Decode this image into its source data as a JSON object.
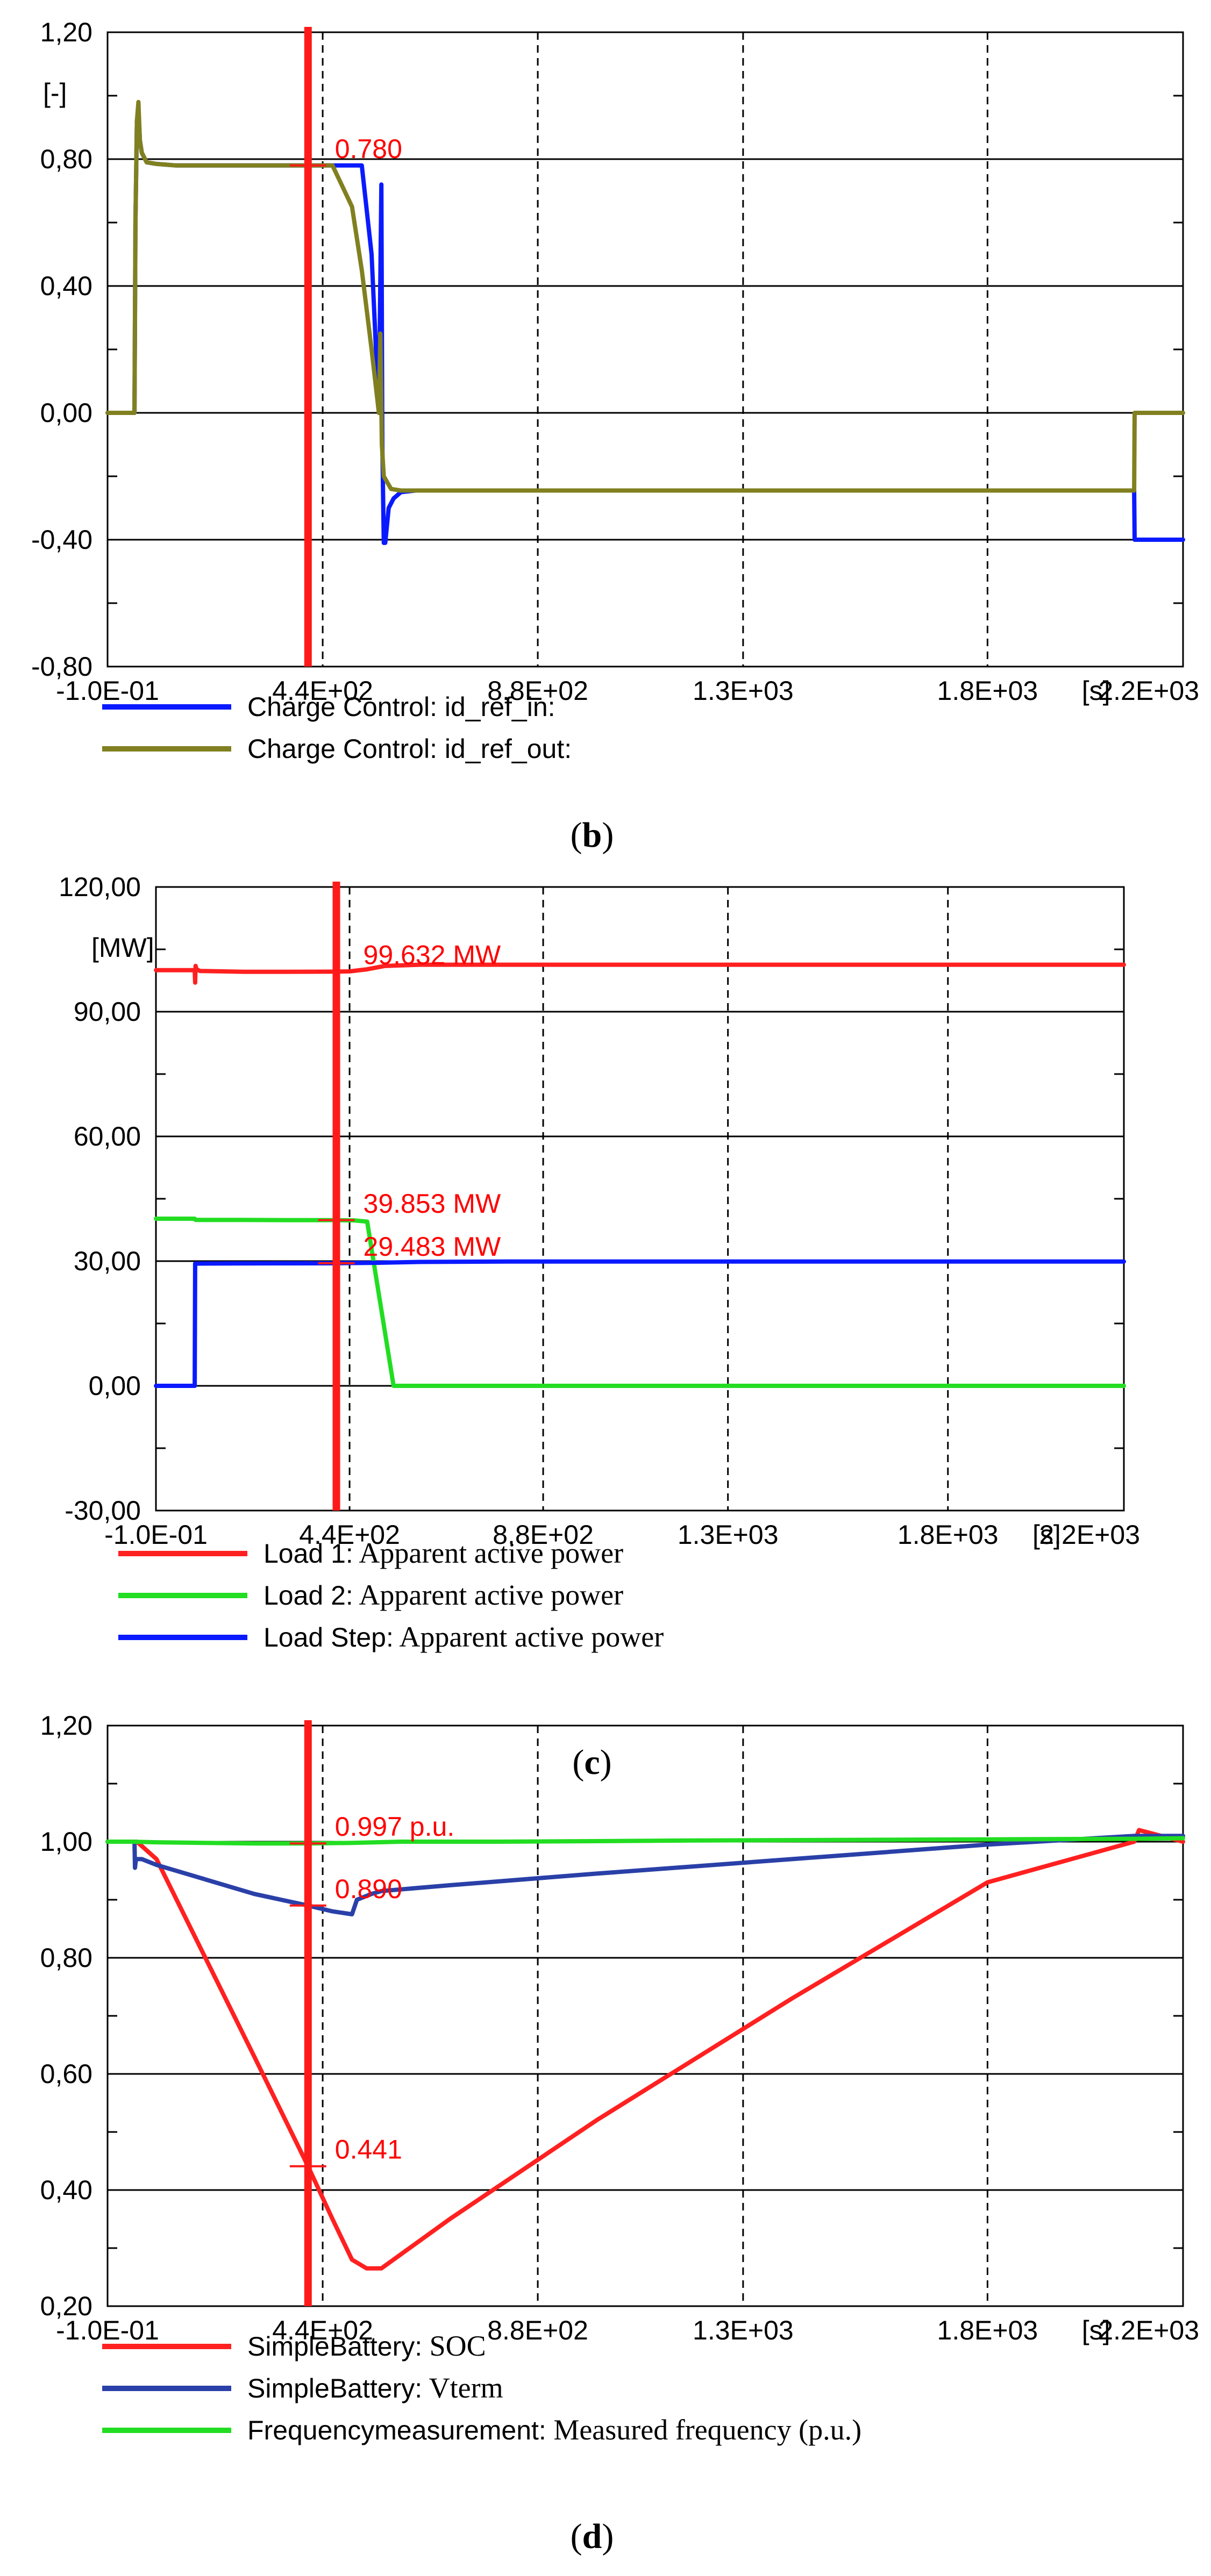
{
  "palette": {
    "blue": "#0a1aff",
    "olive": "#808020",
    "red": "#ff2020",
    "green": "#22dd22",
    "navy": "#2a40a8",
    "cursor": "#ff1a1a"
  },
  "chart_data": [
    {
      "type": "line",
      "caption": "b",
      "unit_label": "[-]",
      "x_unit": "[s]",
      "xlim": [
        -0.1,
        2200
      ],
      "ylim": [
        -0.8,
        1.2
      ],
      "x_ticks": [
        {
          "v": -0.1,
          "label": "-1.0E-01"
        },
        {
          "v": 440,
          "label": "4.4E+02"
        },
        {
          "v": 880,
          "label": "8.8E+02"
        },
        {
          "v": 1300,
          "label": "1.3E+03"
        },
        {
          "v": 1800,
          "label": "1.8E+03"
        },
        {
          "v": 2200,
          "label": "2.2E+03"
        }
      ],
      "y_ticks": [
        {
          "v": -0.8,
          "label": "-0,80"
        },
        {
          "v": -0.4,
          "label": "-0,40"
        },
        {
          "v": 0.0,
          "label": "0,00"
        },
        {
          "v": 0.4,
          "label": "0,40"
        },
        {
          "v": 0.8,
          "label": "0,80"
        },
        {
          "v": 1.2,
          "label": "1,20"
        }
      ],
      "cursor_x": 410,
      "annotations": [
        {
          "text": "0.780",
          "x": 410,
          "y": 0.78
        }
      ],
      "series": [
        {
          "name": "Charge Control: id_ref_in",
          "color_key": "blue",
          "x": [
            0,
            55,
            57,
            60,
            63,
            66,
            70,
            80,
            100,
            140,
            200,
            300,
            400,
            520,
            540,
            555,
            560,
            562,
            565,
            568,
            575,
            585,
            600,
            630,
            700,
            900,
            1300,
            1800,
            2100,
            2101,
            2102,
            2200
          ],
          "y": [
            0,
            0,
            0.6,
            0.92,
            0.96,
            0.86,
            0.82,
            0.79,
            0.785,
            0.78,
            0.78,
            0.78,
            0.78,
            0.78,
            0.5,
            0.0,
            0.72,
            -0.1,
            -0.41,
            -0.41,
            -0.3,
            -0.27,
            -0.25,
            -0.245,
            -0.245,
            -0.245,
            -0.245,
            -0.245,
            -0.245,
            -0.4,
            -0.4,
            -0.4
          ]
        },
        {
          "name": "Charge Control: id_ref_out",
          "color_key": "olive",
          "x": [
            0,
            55,
            57,
            60,
            63,
            66,
            70,
            80,
            100,
            140,
            200,
            300,
            400,
            460,
            500,
            520,
            540,
            555,
            558,
            561,
            565,
            580,
            600,
            630,
            700,
            900,
            1300,
            1800,
            2100,
            2101,
            2102,
            2200
          ],
          "y": [
            0,
            0,
            0.6,
            0.92,
            0.98,
            0.86,
            0.82,
            0.79,
            0.785,
            0.78,
            0.78,
            0.78,
            0.78,
            0.78,
            0.65,
            0.45,
            0.2,
            0.0,
            0.25,
            -0.1,
            -0.2,
            -0.24,
            -0.245,
            -0.245,
            -0.245,
            -0.245,
            -0.245,
            -0.245,
            -0.245,
            0.0,
            0.0,
            0.0
          ]
        }
      ]
    },
    {
      "type": "line",
      "caption": "c",
      "unit_label": "[MW]",
      "x_unit": "[s]",
      "xlim": [
        -0.1,
        2200
      ],
      "ylim": [
        -30,
        120
      ],
      "x_ticks": [
        {
          "v": -0.1,
          "label": "-1.0E-01"
        },
        {
          "v": 440,
          "label": "4.4E+02"
        },
        {
          "v": 880,
          "label": "8.8E+02"
        },
        {
          "v": 1300,
          "label": "1.3E+03"
        },
        {
          "v": 1800,
          "label": "1.8E+03"
        },
        {
          "v": 2200,
          "label": "2.2E+03"
        }
      ],
      "y_ticks": [
        {
          "v": -30,
          "label": "-30,00"
        },
        {
          "v": 0,
          "label": "0,00"
        },
        {
          "v": 30,
          "label": "30,00"
        },
        {
          "v": 60,
          "label": "60,00"
        },
        {
          "v": 90,
          "label": "90,00"
        },
        {
          "v": 120,
          "label": "120,00"
        }
      ],
      "cursor_x": 410,
      "annotations": [
        {
          "text": "99.632 MW",
          "x": 410,
          "y": 99.632
        },
        {
          "text": "39.853 MW",
          "x": 410,
          "y": 39.853
        },
        {
          "text": "29.483 MW",
          "x": 410,
          "y": 29.483
        }
      ],
      "series": [
        {
          "name": "Load 1",
          "desc": "Apparent active power",
          "color_key": "red",
          "x": [
            0,
            88,
            89,
            90,
            92,
            100,
            200,
            300,
            400,
            440,
            480,
            520,
            600,
            800,
            1200,
            1800,
            2200
          ],
          "y": [
            100,
            100,
            97,
            101,
            100.2,
            99.8,
            99.6,
            99.6,
            99.632,
            99.7,
            100.2,
            101,
            101.3,
            101.3,
            101.3,
            101.3,
            101.3
          ]
        },
        {
          "name": "Load 2",
          "desc": "Apparent active power",
          "color_key": "green",
          "x": [
            0,
            88,
            90,
            200,
            300,
            400,
            450,
            480,
            540,
            600,
            1200,
            2200
          ],
          "y": [
            40.2,
            40.2,
            39.9,
            39.9,
            39.853,
            39.853,
            39.8,
            39.5,
            0,
            0,
            0,
            0
          ],
          "note_points": []
        },
        {
          "name": "Load Step",
          "desc": "Apparent active power",
          "color_key": "blue",
          "x": [
            0,
            88,
            89,
            200,
            300,
            400,
            500,
            600,
            800,
            1200,
            1800,
            2200
          ],
          "y": [
            0,
            0,
            29.4,
            29.45,
            29.47,
            29.483,
            29.6,
            29.8,
            29.9,
            29.9,
            29.9,
            29.9
          ]
        }
      ]
    },
    {
      "type": "line",
      "caption": "d",
      "unit_label": "",
      "x_unit": "[s]",
      "xlim": [
        -0.1,
        2200
      ],
      "ylim": [
        0.2,
        1.2
      ],
      "x_ticks": [
        {
          "v": -0.1,
          "label": "-1.0E-01"
        },
        {
          "v": 440,
          "label": "4.4E+02"
        },
        {
          "v": 880,
          "label": "8.8E+02"
        },
        {
          "v": 1300,
          "label": "1.3E+03"
        },
        {
          "v": 1800,
          "label": "1.8E+03"
        },
        {
          "v": 2200,
          "label": "2.2E+03"
        }
      ],
      "y_ticks": [
        {
          "v": 0.2,
          "label": "0,20"
        },
        {
          "v": 0.4,
          "label": "0,40"
        },
        {
          "v": 0.6,
          "label": "0,60"
        },
        {
          "v": 0.8,
          "label": "0,80"
        },
        {
          "v": 1.0,
          "label": "1,00"
        },
        {
          "v": 1.2,
          "label": "1,20"
        }
      ],
      "cursor_x": 410,
      "annotations": [
        {
          "text": "0.997 p.u.",
          "x": 410,
          "y": 0.997
        },
        {
          "text": "0.890",
          "x": 410,
          "y": 0.89
        },
        {
          "text": "0.441",
          "x": 410,
          "y": 0.441
        }
      ],
      "series": [
        {
          "name": "SimpleBattery",
          "desc": "SOC",
          "color_key": "red",
          "x": [
            0,
            60,
            100,
            200,
            300,
            410,
            460,
            500,
            530,
            560,
            700,
            1000,
            1400,
            1800,
            2100,
            2110,
            2200
          ],
          "y": [
            1.0,
            1.0,
            0.97,
            0.8,
            0.63,
            0.441,
            0.35,
            0.28,
            0.265,
            0.265,
            0.35,
            0.52,
            0.73,
            0.93,
            1.0,
            1.02,
            1.0
          ]
        },
        {
          "name": "SimpleBattery",
          "desc": "Vterm",
          "color_key": "navy",
          "x": [
            0,
            55,
            56,
            58,
            70,
            100,
            200,
            300,
            410,
            460,
            500,
            510,
            540,
            560,
            700,
            1000,
            1400,
            1800,
            2100,
            2200
          ],
          "y": [
            1.0,
            1.0,
            0.955,
            0.97,
            0.97,
            0.96,
            0.935,
            0.91,
            0.89,
            0.88,
            0.875,
            0.9,
            0.91,
            0.915,
            0.925,
            0.945,
            0.97,
            0.995,
            1.01,
            1.01
          ]
        },
        {
          "name": "Frequencymeasurement",
          "desc": "Measured frequency (p.u.)",
          "color_key": "green",
          "x": [
            0,
            50,
            100,
            200,
            300,
            410,
            500,
            600,
            800,
            1200,
            1800,
            2100,
            2200
          ],
          "y": [
            1.0,
            1.0,
            0.999,
            0.998,
            0.997,
            0.997,
            0.998,
            1.0,
            1.0,
            1.002,
            1.004,
            1.005,
            1.006
          ]
        }
      ]
    }
  ]
}
